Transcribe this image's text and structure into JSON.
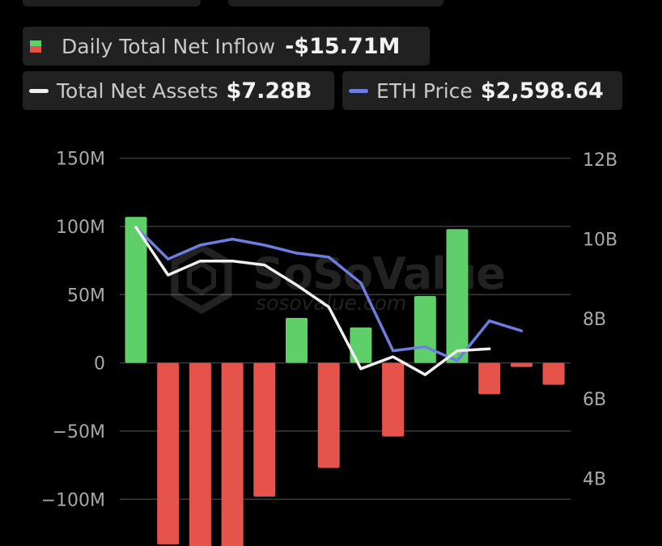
{
  "legend": {
    "inflow": {
      "label": "Daily Total Net Inflow",
      "value": "-$15.71M",
      "color_pos": "#5fcf6a",
      "color_neg": "#e5534b"
    },
    "assets": {
      "label": "Total Net Assets",
      "value": "$7.28B",
      "color": "#f0f0f0"
    },
    "price": {
      "label": "ETH Price",
      "value": "$2,598.64",
      "color": "#6c7fe0"
    }
  },
  "watermark": {
    "brand": "SoSoValue",
    "url": "sosovalue.com",
    "icon": "sosovalue-logo-icon"
  },
  "colors": {
    "grid": "#3a3a3a",
    "tick": "#a8a8a8",
    "bar_positive": "#5fcf6a",
    "bar_negative": "#e5534b",
    "assets_line": "#f0f0f0",
    "price_line": "#6c7fe0"
  },
  "chart_data": {
    "type": "bar",
    "y_left": {
      "ticks": [
        "150M",
        "100M",
        "50M",
        "0",
        "−50M",
        "−100M"
      ],
      "tick_values": [
        150,
        100,
        50,
        0,
        -50,
        -100
      ],
      "unit": "M USD",
      "range": [
        -150,
        150
      ]
    },
    "y_right": {
      "ticks": [
        "12B",
        "10B",
        "8B",
        "6B",
        "4B"
      ],
      "tick_values": [
        12,
        10,
        8,
        6,
        4
      ],
      "unit": "B USD",
      "range": [
        2.0,
        12.0
      ]
    },
    "grid": true,
    "series": [
      {
        "name": "Daily Total Net Inflow",
        "type": "bar",
        "axis": "left",
        "values": [
          107,
          -133,
          -150,
          -152,
          -98,
          33,
          -77,
          26,
          -54,
          49,
          98,
          -23,
          -3,
          -16
        ]
      },
      {
        "name": "Total Net Assets",
        "type": "line",
        "axis": "right",
        "values": [
          10.3,
          9.1,
          9.45,
          9.45,
          9.35,
          8.85,
          8.3,
          6.75,
          7.05,
          6.6,
          7.2,
          7.25
        ]
      },
      {
        "name": "ETH Price",
        "type": "line",
        "axis": "right",
        "values": [
          10.3,
          9.5,
          9.85,
          10.0,
          9.85,
          9.65,
          9.55,
          8.9,
          7.2,
          7.3,
          6.95,
          7.95,
          7.7
        ]
      }
    ]
  }
}
